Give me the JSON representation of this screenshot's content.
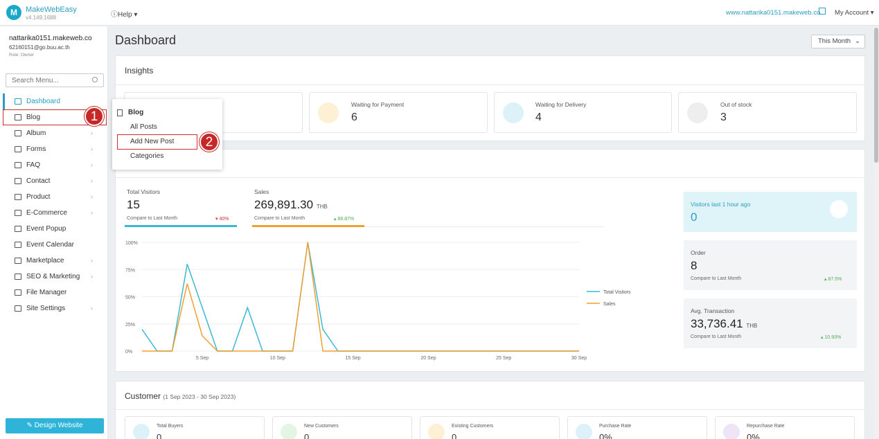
{
  "app": {
    "brand": "MakeWebEasy",
    "version": "v4.149.1688",
    "help": "Help",
    "site_url": "www.nattarika0151.makeweb.co",
    "my_account": "My Account"
  },
  "user": {
    "name": "nattarika0151.makeweb.co",
    "email": "62160151@go.buu.ac.th",
    "role": "Role: Owner"
  },
  "sidebar": {
    "search_placeholder": "Search Menu...",
    "items": [
      {
        "label": "Dashboard",
        "icon": "home-icon"
      },
      {
        "label": "Blog",
        "icon": "document-icon"
      },
      {
        "label": "Album",
        "icon": "image-icon"
      },
      {
        "label": "Forms",
        "icon": "list-icon"
      },
      {
        "label": "FAQ",
        "icon": "question-icon"
      },
      {
        "label": "Contact",
        "icon": "mail-icon"
      },
      {
        "label": "Product",
        "icon": "cart-icon"
      },
      {
        "label": "E-Commerce",
        "icon": "shop-icon"
      },
      {
        "label": "Event Popup",
        "icon": "megaphone-icon"
      },
      {
        "label": "Event Calendar",
        "icon": "calendar-icon"
      },
      {
        "label": "Marketplace",
        "icon": "bag-icon"
      },
      {
        "label": "SEO & Marketing",
        "icon": "search-icon"
      },
      {
        "label": "File Manager",
        "icon": "folder-icon"
      },
      {
        "label": "Site Settings",
        "icon": "gear-icon"
      }
    ],
    "design_button": "Design Website"
  },
  "flyout": {
    "title": "Blog",
    "items": [
      "All Posts",
      "Add New Post",
      "Categories"
    ]
  },
  "annotations": {
    "step1": "1",
    "step2": "2"
  },
  "dashboard": {
    "title": "Dashboard",
    "period": "This Month",
    "insights": {
      "title": "Insights",
      "cards": [
        {
          "label": "Waiting for Payment",
          "value": "6"
        },
        {
          "label": "Waiting for Delivery",
          "value": "4"
        },
        {
          "label": "Out of stock",
          "value": "3"
        }
      ]
    },
    "stats": {
      "visitors": {
        "label": "Total Visitors",
        "value": "15",
        "compare": "Compare to Last Month",
        "change": "40%"
      },
      "sales": {
        "label": "Sales",
        "value": "269,891.30",
        "unit": "THB",
        "compare": "Compare to Last Month",
        "change": "88.87%"
      }
    },
    "right": {
      "visitors_hour": {
        "label": "Visitors last 1 hour ago",
        "value": "0"
      },
      "order": {
        "label": "Order",
        "value": "8",
        "compare": "Compare to Last Month",
        "change": "87.5%"
      },
      "avg": {
        "label": "Avg. Transaction",
        "value": "33,736.41",
        "unit": "THB",
        "compare": "Compare to Last Month",
        "change": "10.93%"
      }
    },
    "customer": {
      "title": "Customer",
      "range": "(1 Sep 2023 - 30 Sep 2023)",
      "cards": [
        {
          "label": "Total Buyers",
          "value": "0"
        },
        {
          "label": "New Customers",
          "value": "0"
        },
        {
          "label": "Existing Customers",
          "value": "0"
        },
        {
          "label": "Purchase Rate",
          "value": "0%"
        },
        {
          "label": "Repurchase Rate",
          "value": "0%"
        }
      ]
    }
  },
  "chart_data": {
    "type": "line",
    "x": [
      1,
      2,
      3,
      4,
      5,
      6,
      7,
      8,
      9,
      10,
      11,
      12,
      13,
      14,
      15,
      16,
      17,
      18,
      19,
      20,
      21,
      22,
      23,
      24,
      25,
      26,
      27,
      28,
      29,
      30
    ],
    "x_ticks": [
      {
        "value": 5,
        "label": "5 Sep"
      },
      {
        "value": 10,
        "label": "10 Sep"
      },
      {
        "value": 15,
        "label": "15 Sep"
      },
      {
        "value": 20,
        "label": "20 Sep"
      },
      {
        "value": 25,
        "label": "25 Sep"
      },
      {
        "value": 30,
        "label": "30 Sep"
      }
    ],
    "y_ticks": [
      "0%",
      "25%",
      "50%",
      "75%",
      "100%"
    ],
    "ylim": [
      0,
      100
    ],
    "series": [
      {
        "name": "Total Visitors",
        "color": "#3bb8d6",
        "values": [
          20,
          0,
          0,
          80,
          40,
          0,
          0,
          40,
          0,
          0,
          0,
          100,
          20,
          0,
          0,
          0,
          0,
          0,
          0,
          0,
          0,
          0,
          0,
          0,
          0,
          0,
          0,
          0,
          0,
          0
        ]
      },
      {
        "name": "Sales",
        "color": "#f0a030",
        "values": [
          0,
          0,
          0,
          62,
          14,
          0,
          0,
          0,
          0,
          0,
          0,
          100,
          0,
          0,
          0,
          0,
          0,
          0,
          0,
          0,
          0,
          0,
          0,
          0,
          0,
          0,
          0,
          0,
          0,
          0
        ]
      }
    ],
    "legend": "right"
  }
}
